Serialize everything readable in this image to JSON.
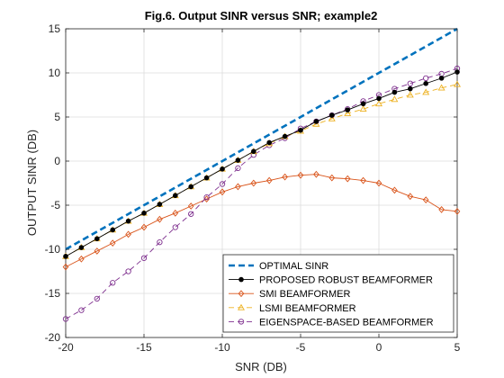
{
  "chart_data": {
    "type": "line",
    "title": "Fig.6. Output SINR versus SNR; example2",
    "xlabel": "SNR (DB)",
    "ylabel": "OUTPUT SINR (DB)",
    "xlim": [
      -20,
      5
    ],
    "ylim": [
      -20,
      15
    ],
    "xticks": [
      -20,
      -15,
      -10,
      -5,
      0,
      5
    ],
    "yticks": [
      -20,
      -15,
      -10,
      -5,
      0,
      5,
      10,
      15
    ],
    "xtick_labels": [
      "-20",
      "-15",
      "-10",
      "-5",
      "0",
      "5"
    ],
    "ytick_labels": [
      "-20",
      "-15",
      "-10",
      "-5",
      "0",
      "5",
      "10",
      "15"
    ],
    "grid": true,
    "legend_position": "bottom-right",
    "series": [
      {
        "name": "OPTIMAL SINR",
        "color": "#0072BD",
        "style": "dashed-thick",
        "marker": "none",
        "x": [
          -20,
          5
        ],
        "y": [
          -10,
          15
        ]
      },
      {
        "name": "PROPOSED ROBUST BEAMFORMER",
        "color": "#000000",
        "style": "solid",
        "marker": "filled-circle",
        "x": [
          -20,
          -19,
          -18,
          -17,
          -16,
          -15,
          -14,
          -13,
          -12,
          -11,
          -10,
          -9,
          -8,
          -7,
          -6,
          -5,
          -4,
          -3,
          -2,
          -1,
          0,
          1,
          2,
          3,
          4,
          5
        ],
        "y": [
          -10.8,
          -9.8,
          -8.8,
          -7.8,
          -6.8,
          -5.9,
          -4.9,
          -3.9,
          -2.9,
          -1.9,
          -0.9,
          0.1,
          1.1,
          2.1,
          2.8,
          3.5,
          4.5,
          5.2,
          5.8,
          6.5,
          7.1,
          7.8,
          8.2,
          8.8,
          9.4,
          10.1
        ]
      },
      {
        "name": "SMI BEAMFORMER",
        "color": "#D95319",
        "style": "solid",
        "marker": "diamond",
        "x": [
          -20,
          -19,
          -18,
          -17,
          -16,
          -15,
          -14,
          -13,
          -12,
          -11,
          -10,
          -9,
          -8,
          -7,
          -6,
          -5,
          -4,
          -3,
          -2,
          -1,
          0,
          1,
          2,
          3,
          4,
          5
        ],
        "y": [
          -12,
          -11.1,
          -10.2,
          -9.3,
          -8.3,
          -7.5,
          -6.6,
          -5.9,
          -5.1,
          -4.3,
          -3.5,
          -2.9,
          -2.5,
          -2.2,
          -1.8,
          -1.6,
          -1.5,
          -1.9,
          -2.0,
          -2.2,
          -2.5,
          -3.3,
          -4.0,
          -4.4,
          -5.5,
          -5.7
        ]
      },
      {
        "name": "LSMI BEAMFORMER",
        "color": "#EDB120",
        "style": "dashed",
        "marker": "triangle",
        "x": [
          -20,
          -19,
          -18,
          -17,
          -16,
          -15,
          -14,
          -13,
          -12,
          -11,
          -10,
          -9,
          -8,
          -7,
          -6,
          -5,
          -4,
          -3,
          -2,
          -1,
          0,
          1,
          2,
          3,
          4,
          5
        ],
        "y": [
          -10.8,
          -9.8,
          -8.8,
          -7.8,
          -6.8,
          -5.9,
          -4.9,
          -3.9,
          -2.9,
          -1.9,
          -0.9,
          0.1,
          1.1,
          2.0,
          2.8,
          3.4,
          4.2,
          4.8,
          5.4,
          5.9,
          6.5,
          7.0,
          7.5,
          7.8,
          8.3,
          8.7
        ]
      },
      {
        "name": "EIGENSPACE-BASED BEAMFORMER",
        "color": "#7E2F8E",
        "style": "dashed",
        "marker": "circle",
        "x": [
          -20,
          -19,
          -18,
          -17,
          -16,
          -15,
          -14,
          -13,
          -12,
          -11,
          -10,
          -9,
          -8,
          -7,
          -6,
          -5,
          -4,
          -3,
          -2,
          -1,
          0,
          1,
          2,
          3,
          4,
          5
        ],
        "y": [
          -17.9,
          -16.9,
          -15.6,
          -13.8,
          -12.5,
          -11.0,
          -9.2,
          -7.5,
          -6.0,
          -4.1,
          -2.6,
          -0.8,
          0.7,
          1.8,
          2.6,
          3.7,
          4.5,
          5.2,
          5.9,
          6.8,
          7.5,
          8.2,
          8.8,
          9.4,
          9.9,
          10.5
        ]
      }
    ]
  }
}
